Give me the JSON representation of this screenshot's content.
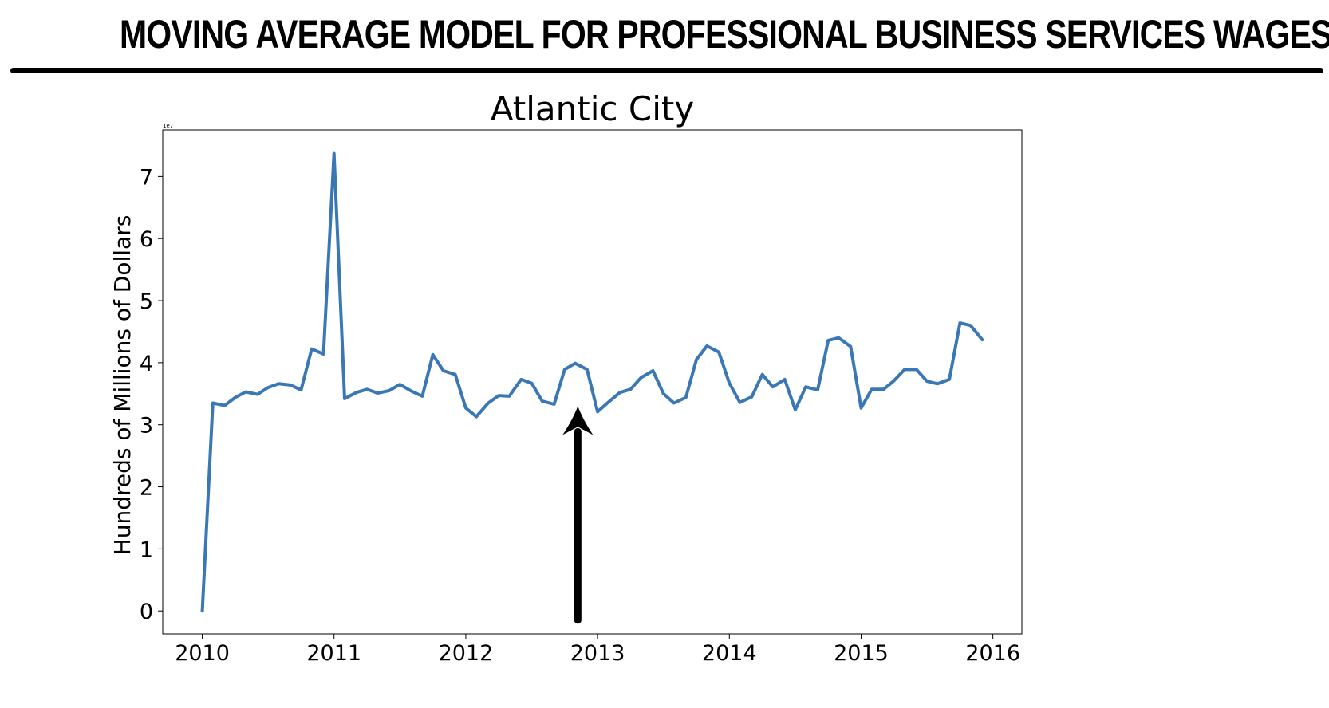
{
  "header": {
    "title": "MOVING AVERAGE MODEL FOR PROFESSIONAL BUSINESS SERVICES WAGES"
  },
  "chart_data": {
    "type": "line",
    "title": "Atlantic City",
    "xlabel": "",
    "ylabel": "Hundreds of Millions of Dollars",
    "y_offset_label": "1e7",
    "x_tick_labels": [
      "2010",
      "2011",
      "2012",
      "2013",
      "2014",
      "2015",
      "2016"
    ],
    "y_tick_labels": [
      "0",
      "1",
      "2",
      "3",
      "4",
      "5",
      "6",
      "7"
    ],
    "xlim": [
      2009.7,
      2016.22
    ],
    "ylim": [
      -0.37,
      7.75
    ],
    "grid": false,
    "line_color": "#3a78b5",
    "series": [
      {
        "x": [
          2010.0,
          2010.08,
          2010.17,
          2010.25,
          2010.33,
          2010.42,
          2010.5,
          2010.58,
          2010.67,
          2010.75,
          2010.83,
          2010.92,
          2011.0,
          2011.08,
          2011.17,
          2011.25,
          2011.33,
          2011.42,
          2011.5,
          2011.58,
          2011.67,
          2011.75,
          2011.83,
          2011.92,
          2012.0,
          2012.08,
          2012.17,
          2012.25,
          2012.33,
          2012.42,
          2012.5,
          2012.58,
          2012.67,
          2012.75,
          2012.83,
          2012.92,
          2013.0,
          2013.08,
          2013.17,
          2013.25,
          2013.33,
          2013.42,
          2013.5,
          2013.58,
          2013.67,
          2013.75,
          2013.83,
          2013.92,
          2014.0,
          2014.08,
          2014.17,
          2014.25,
          2014.33,
          2014.42,
          2014.5,
          2014.58,
          2014.67,
          2014.75,
          2014.83,
          2014.92,
          2015.0,
          2015.08,
          2015.17,
          2015.25,
          2015.33,
          2015.42,
          2015.5,
          2015.58,
          2015.67,
          2015.75,
          2015.83,
          2015.92,
          2016.0
        ],
        "y": [
          0.0,
          3.35,
          3.31,
          3.44,
          3.53,
          3.49,
          3.6,
          3.66,
          3.64,
          3.56,
          4.22,
          4.14,
          7.37,
          3.42,
          3.52,
          3.57,
          3.51,
          3.55,
          3.65,
          3.55,
          3.46,
          4.13,
          3.87,
          3.81,
          3.27,
          3.13,
          3.35,
          3.47,
          3.46,
          3.73,
          3.67,
          3.38,
          3.33,
          3.89,
          3.99,
          3.89,
          3.21,
          3.36,
          3.52,
          3.57,
          3.76,
          3.87,
          3.5,
          3.35,
          3.44,
          4.05,
          4.27,
          4.17,
          3.67,
          3.36,
          3.45,
          3.81,
          3.61,
          3.73,
          3.24,
          3.61,
          3.56,
          4.36,
          4.4,
          4.26,
          3.27,
          3.57,
          3.57,
          3.71,
          3.89,
          3.89,
          3.7,
          3.66,
          3.73,
          4.64,
          4.6,
          4.37,
          null
        ]
      }
    ],
    "annotation": {
      "type": "arrow",
      "color": "#000000",
      "x": 2012.85,
      "y_from": -0.15,
      "y_to": 3.3
    }
  }
}
